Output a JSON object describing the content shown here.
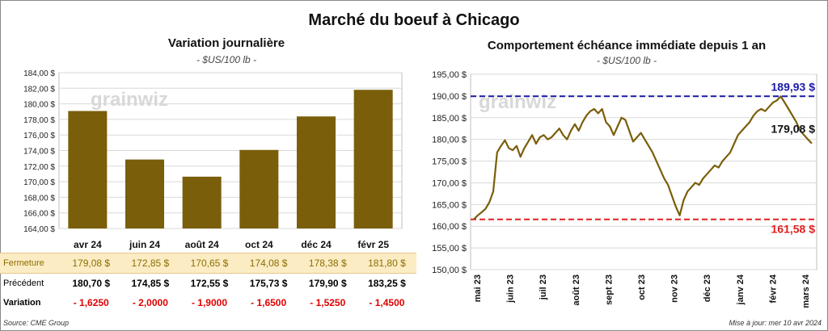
{
  "title": "Marché du boeuf à Chicago",
  "left_panel": {
    "title": "Variation  journalière",
    "unit": "- $US/100 lb -"
  },
  "right_panel": {
    "title": "Comportement  échéance immédiate depuis 1 an",
    "unit": "- $US/100 lb -"
  },
  "watermark": "grainwiz",
  "table": {
    "rows": [
      {
        "label": "Fermeture",
        "values": [
          "179,08  $",
          "172,85  $",
          "170,65  $",
          "174,08  $",
          "178,38  $",
          "181,80  $"
        ]
      },
      {
        "label": "Précédent",
        "values": [
          "180,70  $",
          "174,85  $",
          "172,55  $",
          "175,73  $",
          "179,90  $",
          "183,25  $"
        ]
      },
      {
        "label": "Variation",
        "values": [
          "- 1,6250",
          "- 2,0000",
          "- 1,9000",
          "- 1,6500",
          "- 1,5250",
          "- 1,4500"
        ]
      }
    ]
  },
  "footer": {
    "source": "Source: CME Group",
    "updated": "Mise à jour: mer 10 avr 2024"
  },
  "colors": {
    "bar": "#7a5e0a",
    "line": "#7a5e0a",
    "max_line": "#1a1aa8",
    "min_line": "#e02020",
    "close_row": "#fcecc4"
  },
  "chart_data": [
    {
      "type": "bar",
      "categories": [
        "avr 24",
        "juin 24",
        "août 24",
        "oct 24",
        "déc 24",
        "févr 25"
      ],
      "values": [
        179.08,
        172.85,
        170.65,
        174.08,
        178.38,
        181.8
      ],
      "ylim": [
        164,
        184
      ],
      "yticks": [
        "164,00 $",
        "166,00 $",
        "168,00 $",
        "170,00 $",
        "172,00 $",
        "174,00 $",
        "176,00 $",
        "178,00 $",
        "180,00 $",
        "182,00 $",
        "184,00 $"
      ],
      "grid": true
    },
    {
      "type": "line",
      "x_labels": [
        "mai 23",
        "juin 23",
        "juil 23",
        "août 23",
        "sept 23",
        "oct 23",
        "nov 23",
        "déc 23",
        "janv 24",
        "févr 24",
        "mars 24"
      ],
      "ylim": [
        150,
        195
      ],
      "yticks": [
        "150,00 $",
        "155,00 $",
        "160,00 $",
        "165,00 $",
        "170,00 $",
        "175,00 $",
        "180,00 $",
        "185,00 $",
        "190,00 $",
        "195,00 $"
      ],
      "grid": true,
      "values": [
        161.6,
        162.5,
        163.2,
        164.0,
        165.5,
        168.0,
        177.0,
        178.5,
        179.8,
        178.0,
        177.5,
        178.5,
        176.0,
        178.0,
        179.5,
        181.0,
        179.0,
        180.5,
        181.0,
        180.0,
        180.5,
        181.5,
        182.5,
        181.0,
        180.0,
        182.0,
        183.5,
        182.0,
        184.0,
        185.5,
        186.5,
        187.0,
        186.0,
        187.0,
        184.0,
        183.0,
        181.0,
        183.0,
        185.0,
        184.5,
        182.0,
        179.5,
        180.5,
        181.5,
        180.0,
        178.5,
        177.0,
        175.0,
        173.0,
        171.0,
        169.5,
        167.0,
        164.5,
        162.5,
        166.0,
        168.0,
        169.0,
        170.0,
        169.5,
        171.0,
        172.0,
        173.0,
        174.0,
        173.5,
        175.0,
        176.0,
        177.0,
        179.0,
        181.0,
        182.0,
        183.0,
        184.0,
        185.5,
        186.5,
        187.0,
        186.5,
        187.5,
        188.5,
        189.0,
        189.9,
        188.5,
        187.0,
        185.5,
        184.0,
        182.0,
        181.0,
        180.0,
        179.08
      ],
      "reference_lines": [
        {
          "value": 189.93,
          "label": "189,93 $"
        },
        {
          "value": 161.58,
          "label": "161,58 $"
        }
      ],
      "last_label": "179,08 $"
    }
  ]
}
